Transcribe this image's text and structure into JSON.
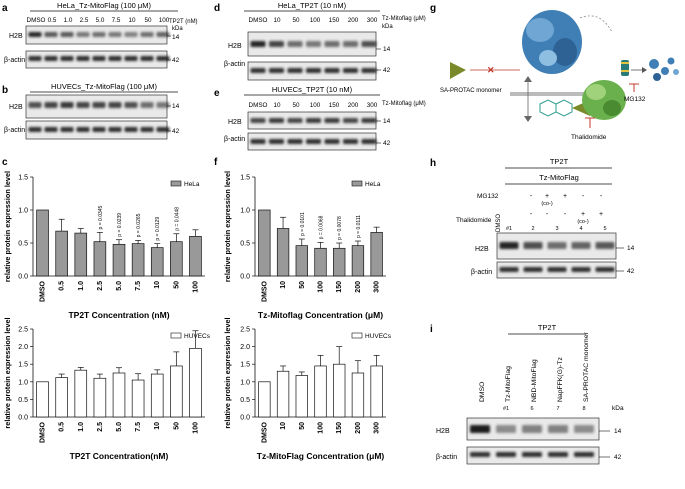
{
  "panels": {
    "a": {
      "letter": "a",
      "title": "HeLa_Tz-MitoFlag (100 μM)",
      "conc_header": "TP2T (nM)",
      "lanes": [
        "DMSO",
        "0.5",
        "1.0",
        "2.5",
        "5.0",
        "7.5",
        "10",
        "50",
        "100"
      ],
      "rows": [
        "H2B",
        "β-actin"
      ],
      "kda_label": "kDa",
      "markers": [
        "14",
        "42"
      ]
    },
    "b": {
      "letter": "b",
      "title": "HUVECs_Tz-MitoFlag (100 μM)",
      "rows": [
        "H2B",
        "β-actin"
      ],
      "markers": [
        "14",
        "42"
      ]
    },
    "d": {
      "letter": "d",
      "title": "HeLa_TP2T (10 nM)",
      "conc_header": "Tz-Mitoflag (μM)",
      "lanes": [
        "DMSO",
        "10",
        "50",
        "100",
        "150",
        "200",
        "300"
      ],
      "rows": [
        "H2B",
        "β-actin"
      ],
      "kda_label": "kDa",
      "markers": [
        "14",
        "42"
      ]
    },
    "e": {
      "letter": "e",
      "title": "HUVECs_TP2T (10 nM)",
      "conc_header": "Tz-Mitoflag (μM)",
      "lanes": [
        "DMSO",
        "10",
        "50",
        "100",
        "150",
        "200",
        "300"
      ],
      "rows": [
        "H2B",
        "β-actin"
      ],
      "markers": [
        "14",
        "42"
      ]
    },
    "g": {
      "letter": "g",
      "monomer_label": "SA-PROTAC monomer",
      "inhibitor1": "MG132",
      "inhibitor2": "Thalidomide"
    },
    "h": {
      "letter": "h",
      "header1": "TP2T",
      "header2": "Tz-MitoFlag",
      "treat1": "MG132",
      "treat2": "Thalidomide",
      "dmso": "DMSO",
      "signs_mg": [
        "-",
        "+",
        "+",
        "-",
        "-"
      ],
      "signs_th": [
        "-",
        "-",
        "-",
        "+",
        "+"
      ],
      "co_label": "(co-)",
      "lane_nums": [
        "#1",
        "2",
        "3",
        "4",
        "5"
      ],
      "rows": [
        "H2B",
        "β-actin"
      ],
      "kda_label": "kDa",
      "markers": [
        "14",
        "42"
      ]
    },
    "i": {
      "letter": "i",
      "header": "TP2T",
      "lanes": [
        "DMSO",
        "Tz-MitoFlag",
        "NBD-MitoFlag",
        "NapFFK(G)-Tz",
        "SA-PROTAC monomer"
      ],
      "lane_nums": [
        "#1",
        "6",
        "7",
        "8"
      ],
      "rows": [
        "H2B",
        "β-actin"
      ],
      "kda_label": "kDa",
      "markers": [
        "14",
        "42"
      ]
    }
  },
  "chart_data": [
    {
      "panel": "c",
      "type": "bar",
      "series": [
        {
          "name": "HeLa",
          "values": [
            1.0,
            0.68,
            0.65,
            0.52,
            0.48,
            0.49,
            0.43,
            0.52,
            0.6
          ],
          "errors": [
            0,
            0.18,
            0.07,
            0.14,
            0.07,
            0.05,
            0.06,
            0.12,
            0.1
          ]
        }
      ],
      "categories": [
        "DMSO",
        "0.5",
        "1.0",
        "2.5",
        "5.0",
        "7.5",
        "10",
        "50",
        "100"
      ],
      "pvalues": [
        "",
        "",
        "",
        "p = 0.0345",
        "p = 0.0239",
        "p = 0.0265",
        "p = 0.0129",
        "p = 0.0448",
        ""
      ],
      "xlabel": "TP2T Concentration (nM)",
      "ylabel": "relative protein expression level",
      "ylim": [
        0,
        1.5
      ],
      "yticks": [
        "0.0",
        "0.5",
        "1.0",
        "1.5"
      ],
      "legend": "top-right",
      "fill": "#999999"
    },
    {
      "panel": "c-lower",
      "type": "bar",
      "series": [
        {
          "name": "HUVECs",
          "values": [
            1.0,
            1.12,
            1.33,
            1.1,
            1.25,
            1.05,
            1.22,
            1.45,
            1.95
          ],
          "errors": [
            0,
            0.1,
            0.08,
            0.12,
            0.15,
            0.18,
            0.12,
            0.4,
            0.5
          ]
        }
      ],
      "categories": [
        "DMSO",
        "0.5",
        "1.0",
        "2.5",
        "5.0",
        "7.5",
        "10",
        "50",
        "100"
      ],
      "xlabel": "TP2T Concentration(nM)",
      "ylabel": "relative protein expression level",
      "ylim": [
        0,
        2.5
      ],
      "yticks": [
        "0.0",
        "0.5",
        "1.0",
        "1.5",
        "2.0",
        "2.5"
      ],
      "legend": "top-right",
      "fill": "#ffffff"
    },
    {
      "panel": "f",
      "type": "bar",
      "series": [
        {
          "name": "HeLa",
          "values": [
            1.0,
            0.72,
            0.46,
            0.42,
            0.42,
            0.46,
            0.66
          ],
          "errors": [
            0,
            0.17,
            0.1,
            0.09,
            0.08,
            0.07,
            0.08
          ]
        }
      ],
      "categories": [
        "DMSO",
        "10",
        "50",
        "100",
        "150",
        "200",
        "300"
      ],
      "pvalues": [
        "",
        "",
        "p = 0.0101",
        "p = 0.0068",
        "p = 0.0078",
        "p = 0.0111",
        ""
      ],
      "xlabel": "Tz-Mitoflag Concentration (μM)",
      "ylabel": "relative protein expression level",
      "ylim": [
        0,
        1.5
      ],
      "yticks": [
        "0.0",
        "0.5",
        "1.0",
        "1.5"
      ],
      "legend": "top-right",
      "fill": "#999999"
    },
    {
      "panel": "f-lower",
      "type": "bar",
      "series": [
        {
          "name": "HUVECs",
          "values": [
            1.0,
            1.3,
            1.18,
            1.45,
            1.5,
            1.25,
            1.45
          ],
          "errors": [
            0,
            0.15,
            0.1,
            0.3,
            0.5,
            0.35,
            0.3
          ]
        }
      ],
      "categories": [
        "DMSO",
        "10",
        "50",
        "100",
        "150",
        "200",
        "300"
      ],
      "xlabel": "Tz-MitoFlag Concentration (μM)",
      "ylabel": "relative protein expression level",
      "ylim": [
        0,
        2.5
      ],
      "yticks": [
        "0.0",
        "0.5",
        "1.0",
        "1.5",
        "2.0",
        "2.5"
      ],
      "legend": "top-right",
      "fill": "#ffffff"
    }
  ],
  "chart_letter_c": "c",
  "chart_letter_f": "f",
  "colors": {
    "ink": "#111111",
    "band": "#1a1a1a",
    "membrane": "#e9e9e9",
    "protein_blue": "#3f7fb5",
    "protein_green": "#6ab04c",
    "monomer": "#7a8a2a"
  }
}
